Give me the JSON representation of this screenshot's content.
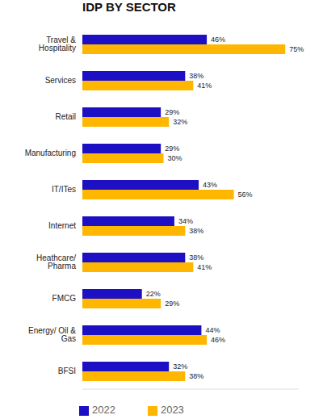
{
  "chart_data": {
    "type": "bar",
    "title": "IDP BY SECTOR",
    "orientation": "horizontal",
    "categories": [
      "Travel & Hospitality",
      "Services",
      "Retail",
      "Manufacturing",
      "IT/ITes",
      "Internet",
      "Heathcare/ Pharma",
      "FMCG",
      "Energy/ Oil & Gas",
      "BFSI"
    ],
    "series": [
      {
        "name": "2022",
        "color": "#1c0fc4",
        "values": [
          46,
          38,
          29,
          29,
          43,
          34,
          38,
          22,
          44,
          32
        ],
        "value_labels": [
          "46%",
          "38%",
          "29%",
          "29%",
          "43%",
          "34%",
          "38%",
          "22%",
          "44%",
          "32%"
        ]
      },
      {
        "name": "2023",
        "color": "#ffb600",
        "values": [
          75,
          41,
          32,
          30,
          56,
          38,
          41,
          29,
          46,
          38
        ],
        "value_labels": [
          "75%",
          "41%",
          "32%",
          "30%",
          "56%",
          "38%",
          "41%",
          "29%",
          "46%",
          "38%"
        ]
      }
    ],
    "xlim": [
      0,
      80
    ],
    "data_labels": true,
    "tick_labels": "y",
    "legend": "lower left",
    "grid": false
  }
}
